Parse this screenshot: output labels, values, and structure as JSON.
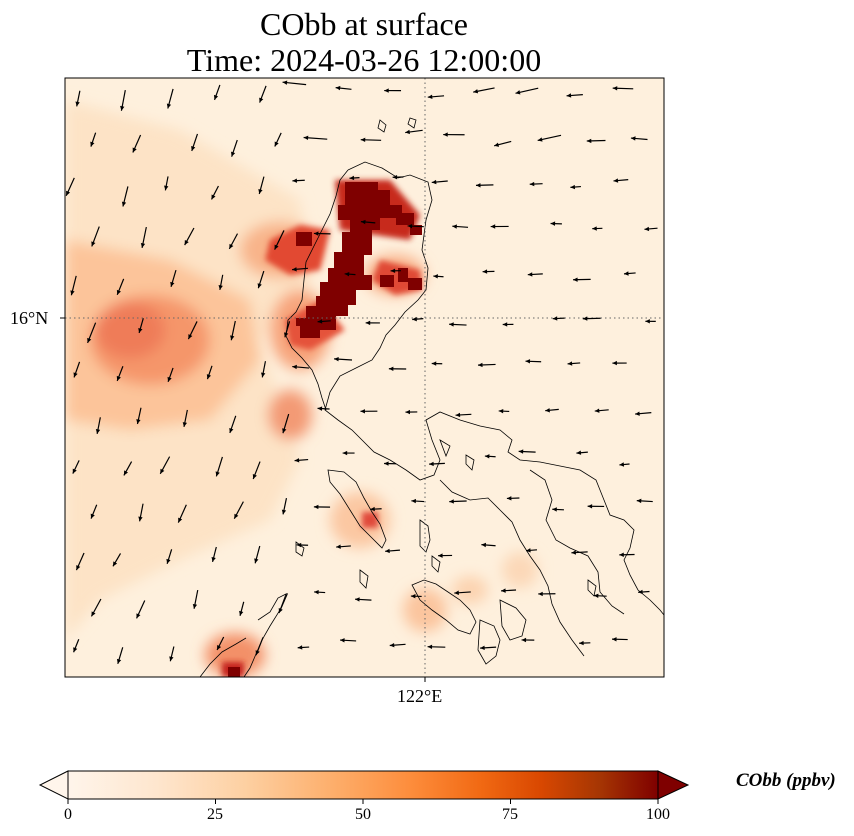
{
  "title": {
    "line1": "CObb at surface",
    "line2": "Time: 2024-03-26 12:00:00"
  },
  "axes": {
    "lat_tick": "16°N",
    "lon_tick": "122°E"
  },
  "colorbar": {
    "label": "CObb (ppbv)",
    "ticks": [
      "0",
      "25",
      "50",
      "75",
      "100"
    ],
    "min": 0,
    "max": 100,
    "extend": "both",
    "colormap": [
      "#fff5eb",
      "#fee6ce",
      "#fdd0a2",
      "#fdae6b",
      "#fd8d3c",
      "#f16913",
      "#d94801",
      "#a63603",
      "#7f2704"
    ]
  },
  "map": {
    "background_color": "#fef0dd",
    "gridlines": "dotted",
    "plume_color": "#7f0000"
  }
}
